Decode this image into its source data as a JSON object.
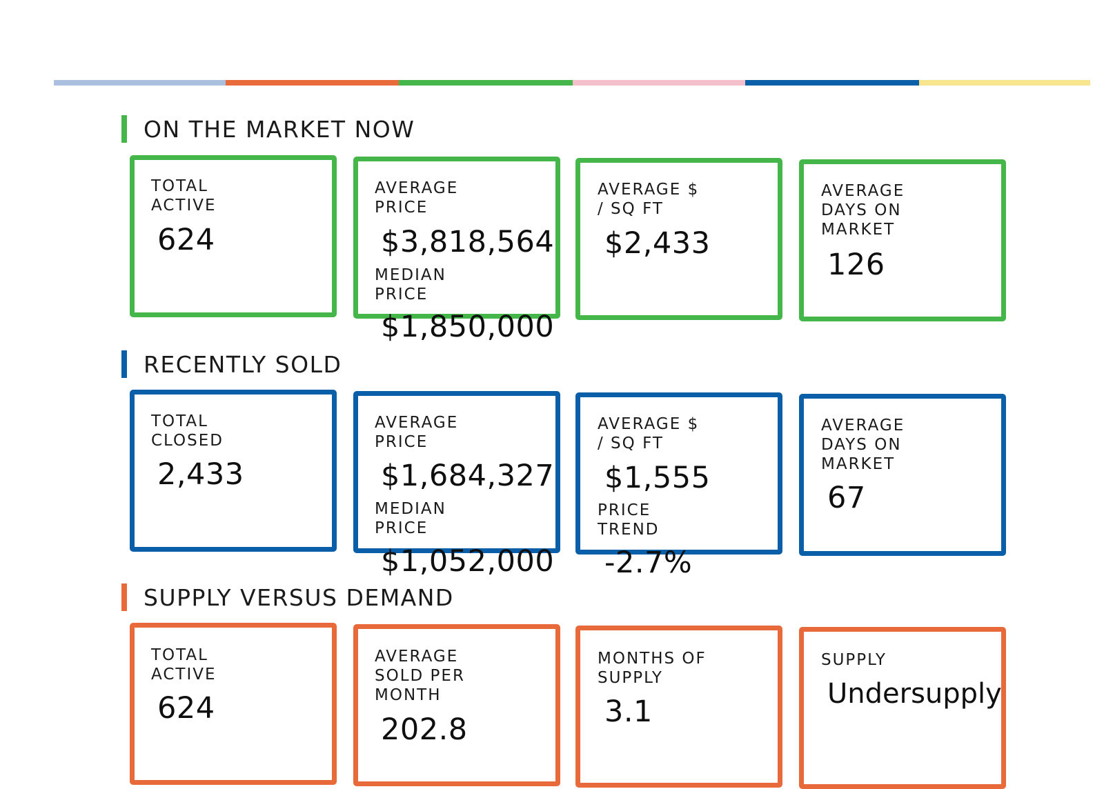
{
  "stripe_colors": [
    "#a9c1de",
    "#e8693a",
    "#45b649",
    "#f3bfc8",
    "#0b5ea8",
    "#f8e58e"
  ],
  "sections": {
    "market_now": {
      "title": "ON THE MARKET NOW",
      "color": "#45b649",
      "total_active_label": "TOTAL\nACTIVE",
      "total_active_value": "624",
      "average_price_label": "AVERAGE\nPRICE",
      "average_price_value": "$3,818,564",
      "median_price_label": "MEDIAN\nPRICE",
      "median_price_value": "$1,850,000",
      "avg_sqft_label": "AVERAGE $\n/ SQ FT",
      "avg_sqft_value": "$2,433",
      "avg_dom_label": "AVERAGE\nDAYS ON\nMARKET",
      "avg_dom_value": "126"
    },
    "recently_sold": {
      "title": "RECENTLY SOLD",
      "color": "#0b5ea8",
      "total_closed_label": "TOTAL\nCLOSED",
      "total_closed_value": "2,433",
      "average_price_label": "AVERAGE\nPRICE",
      "average_price_value": "$1,684,327",
      "median_price_label": "MEDIAN\nPRICE",
      "median_price_value": "$1,052,000",
      "avg_sqft_label": "AVERAGE $\n/ SQ FT",
      "avg_sqft_value": "$1,555",
      "price_trend_label": "PRICE\nTREND",
      "price_trend_value": "-2.7%",
      "avg_dom_label": "AVERAGE\nDAYS ON\nMARKET",
      "avg_dom_value": "67"
    },
    "supply_demand": {
      "title": "SUPPLY VERSUS DEMAND",
      "color": "#e8693a",
      "total_active_label": "TOTAL\nACTIVE",
      "total_active_value": "624",
      "avg_sold_label": "AVERAGE\nSOLD PER\nMONTH",
      "avg_sold_value": "202.8",
      "months_supply_label": "MONTHS OF\nSUPPLY",
      "months_supply_value": "3.1",
      "supply_label": "SUPPLY",
      "supply_value": "Undersupply"
    }
  }
}
